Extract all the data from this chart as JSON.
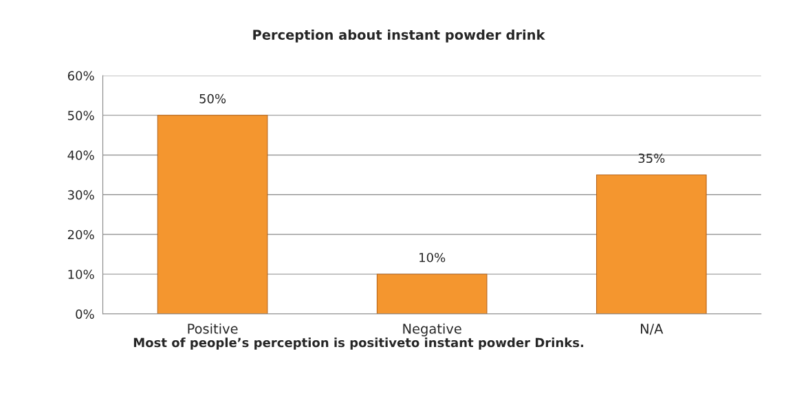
{
  "chart_data": {
    "type": "bar",
    "title": "Perception about instant powder drink",
    "categories": [
      "Positive",
      "Negative",
      "N/A"
    ],
    "values": [
      50,
      10,
      35
    ],
    "value_labels": [
      "50%",
      "10%",
      "35%"
    ],
    "color": "#f4962f",
    "ylim": [
      0,
      60
    ],
    "yticks": [
      {
        "value": 0,
        "label": "0%"
      },
      {
        "value": 10,
        "label": "10%"
      },
      {
        "value": 20,
        "label": "20%"
      },
      {
        "value": 30,
        "label": "30%"
      },
      {
        "value": 40,
        "label": "40%"
      },
      {
        "value": 50,
        "label": "50%"
      },
      {
        "value": 60,
        "label": "60%"
      }
    ],
    "grid": "y",
    "legend": false,
    "annotations": [
      "Most of people’s perception is positiveto instant powder Drinks."
    ]
  }
}
